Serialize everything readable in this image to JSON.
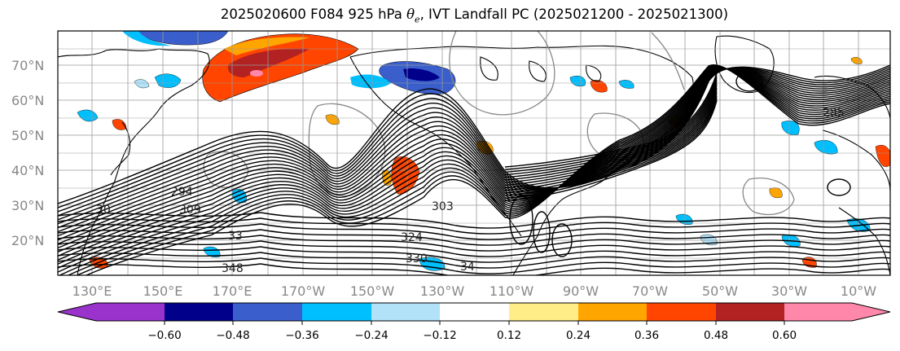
{
  "title": {
    "prefix": "2025020600 F084 925 hPa",
    "theta": "θ",
    "theta_sub": "e",
    "suffix": ", IVT Landfall PC (2025021200 - 2025021300)"
  },
  "axes": {
    "lat_ticks": [
      "70°N",
      "60°N",
      "50°N",
      "40°N",
      "30°N",
      "20°N"
    ],
    "lon_ticks": [
      "130°E",
      "150°E",
      "170°E",
      "170°W",
      "150°W",
      "130°W",
      "110°W",
      "90°W",
      "70°W",
      "50°W",
      "30°W",
      "10°W"
    ]
  },
  "contour_labels": [
    "294",
    "309",
    "30",
    "303",
    "324",
    "330",
    "348",
    "285",
    "34",
    "33"
  ],
  "colorbar": {
    "ticks": [
      "−0.60",
      "−0.48",
      "−0.36",
      "−0.24",
      "−0.12",
      "0.12",
      "0.24",
      "0.36",
      "0.48",
      "0.60"
    ],
    "colors": {
      "under": "#9933cc",
      "bins": [
        "#00008b",
        "#3a5fcd",
        "#00bfff",
        "#b2e2f8",
        "#ffffff",
        "#ffee88",
        "#ffa500",
        "#ff4500",
        "#b22222"
      ],
      "over": "#ff88aa"
    }
  },
  "field_colors": {
    "pos_light": "#ffa500",
    "pos_mid": "#ff4500",
    "pos_dark": "#b22222",
    "pos_extreme": "#ff88aa",
    "neg_light": "#b2e2f8",
    "neg_mid": "#00bfff",
    "neg_dark": "#3a5fcd",
    "neg_extreme": "#00008b"
  }
}
